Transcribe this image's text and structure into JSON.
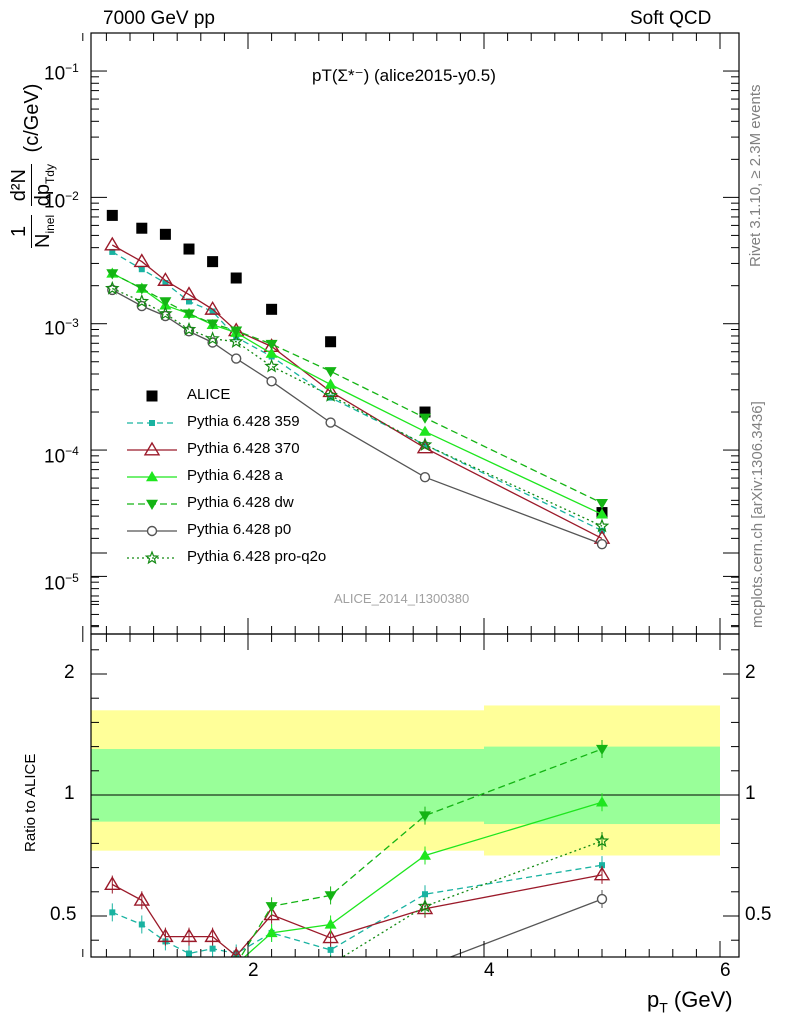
{
  "header": {
    "left": "7000 GeV pp",
    "right": "Soft QCD"
  },
  "side_labels": {
    "top": "Rivet 3.1.10, ≥ 2.3M events",
    "bottom": "mcplots.cern.ch [arXiv:1306.3436]"
  },
  "chart_data": [
    {
      "type": "scatter",
      "title": "pT(Σ*⁻) (alice2015-y0.5)",
      "watermark": "ALICE_2014_I1300380",
      "yscale": "log",
      "ylim": [
        3.5e-06,
        0.2
      ],
      "xlim": [
        0.6,
        6.1
      ],
      "ylabel": {
        "num_prefix": "1",
        "den_main": "N",
        "den_sub": "inel",
        "frac2_num": "d²N",
        "frac2_den": "dp",
        "frac2_den_sub": "Tdy",
        "unit": "(c/GeV)"
      },
      "yticks": [
        {
          "value": 1e-05,
          "base": "10",
          "exp": "−5"
        },
        {
          "value": 0.0001,
          "base": "10",
          "exp": "−4"
        },
        {
          "value": 0.001,
          "base": "10",
          "exp": "−3"
        },
        {
          "value": 0.01,
          "base": "10",
          "exp": "−2"
        },
        {
          "value": 0.1,
          "base": "10",
          "exp": "−1"
        }
      ],
      "legend_position": "middle-left",
      "x": [
        0.85,
        1.1,
        1.3,
        1.5,
        1.7,
        1.9,
        2.2,
        2.7,
        3.5,
        5.0
      ],
      "series": [
        {
          "name": "ALICE",
          "color": "#000000",
          "marker": "square",
          "dash": "none",
          "connect": false,
          "values": [
            0.0072,
            0.0057,
            0.0051,
            0.0039,
            0.0031,
            0.0023,
            0.0013,
            0.00072,
            0.0002,
            3.2e-05
          ]
        },
        {
          "name": "Pythia 6.428 359",
          "color": "#19b3a1",
          "marker": "smallsquare",
          "dash": "6,4",
          "values": [
            0.0037,
            0.0027,
            0.0021,
            0.0015,
            0.00125,
            0.00078,
            0.00055,
            0.00026,
            0.00011,
            2.3e-05
          ]
        },
        {
          "name": "Pythia 6.428 370",
          "color": "#9b1a2a",
          "marker": "triangle-open",
          "dash": "none",
          "values": [
            0.0042,
            0.0031,
            0.0022,
            0.0017,
            0.0013,
            0.00088,
            0.00066,
            0.00029,
            0.000104,
            2e-05
          ]
        },
        {
          "name": "Pythia 6.428 a",
          "color": "#1ee61e",
          "marker": "triangle",
          "dash": "none",
          "values": [
            0.0025,
            0.0019,
            0.0014,
            0.0012,
            0.00098,
            0.00085,
            0.00058,
            0.00033,
            0.00014,
            3.1e-05
          ]
        },
        {
          "name": "Pythia 6.428 dw",
          "color": "#14b414",
          "marker": "triangle-down",
          "dash": "7,4",
          "values": [
            0.0025,
            0.0019,
            0.0015,
            0.0012,
            0.001,
            0.00088,
            0.00069,
            0.00042,
            0.00018,
            3.8e-05
          ]
        },
        {
          "name": "Pythia 6.428 p0",
          "color": "#555555",
          "marker": "circle-open",
          "dash": "none",
          "values": [
            0.00185,
            0.00138,
            0.00115,
            0.00087,
            0.00071,
            0.00053,
            0.00035,
            0.000165,
            6.1e-05,
            1.8e-05
          ]
        },
        {
          "name": "Pythia 6.428 pro-q2o",
          "color": "#138a13",
          "marker": "star",
          "dash": "2,3",
          "values": [
            0.0019,
            0.0015,
            0.0012,
            0.0009,
            0.00076,
            0.00072,
            0.00046,
            0.00027,
            0.00011,
            2.5e-05
          ]
        }
      ]
    },
    {
      "type": "scatter",
      "title": "",
      "ylabel": "Ratio to ALICE",
      "xlabel": "p",
      "xlabel_sub": "T",
      "xlabel_unit": " (GeV)",
      "ylim": [
        0.33,
        2.35
      ],
      "xlim": [
        0.6,
        6.1
      ],
      "xticks": [
        "2",
        "4",
        "6"
      ],
      "yticks": [
        "0.5",
        "1",
        "2"
      ],
      "bands": {
        "edges": [
          0.6,
          2.0,
          4.0,
          6.0
        ],
        "outer": [
          [
            0.77,
            1.35
          ],
          [
            0.77,
            1.35
          ],
          [
            0.75,
            1.37
          ]
        ],
        "inner": [
          [
            0.89,
            1.19
          ],
          [
            0.89,
            1.19
          ],
          [
            0.88,
            1.2
          ]
        ],
        "outer_color": "#ffff99",
        "inner_color": "#99ff99"
      },
      "x": [
        0.85,
        1.1,
        1.3,
        1.5,
        1.7,
        1.9,
        2.2,
        2.7,
        3.5,
        5.0
      ],
      "series": [
        {
          "name": "Pythia 6.428 359",
          "values": [
            0.515,
            0.465,
            0.395,
            0.345,
            0.365,
            0.345,
            0.43,
            0.36,
            0.59,
            0.71
          ]
        },
        {
          "name": "Pythia 6.428 370",
          "values": [
            0.63,
            0.565,
            0.415,
            0.415,
            0.415,
            0.335,
            0.505,
            0.41,
            0.53,
            0.67
          ]
        },
        {
          "name": "Pythia 6.428 a",
          "values": [
            null,
            null,
            null,
            null,
            null,
            0.3,
            0.43,
            0.465,
            0.75,
            0.97
          ]
        },
        {
          "name": "Pythia 6.428 dw",
          "values": [
            null,
            null,
            null,
            null,
            null,
            0.3,
            0.54,
            0.585,
            0.915,
            1.19
          ]
        },
        {
          "name": "Pythia 6.428 p0",
          "values": [
            null,
            null,
            null,
            null,
            null,
            null,
            null,
            null,
            0.29,
            0.57
          ]
        },
        {
          "name": "Pythia 6.428 pro-q2o",
          "values": [
            null,
            null,
            null,
            null,
            null,
            null,
            null,
            0.3,
            0.54,
            0.81
          ]
        }
      ]
    }
  ]
}
